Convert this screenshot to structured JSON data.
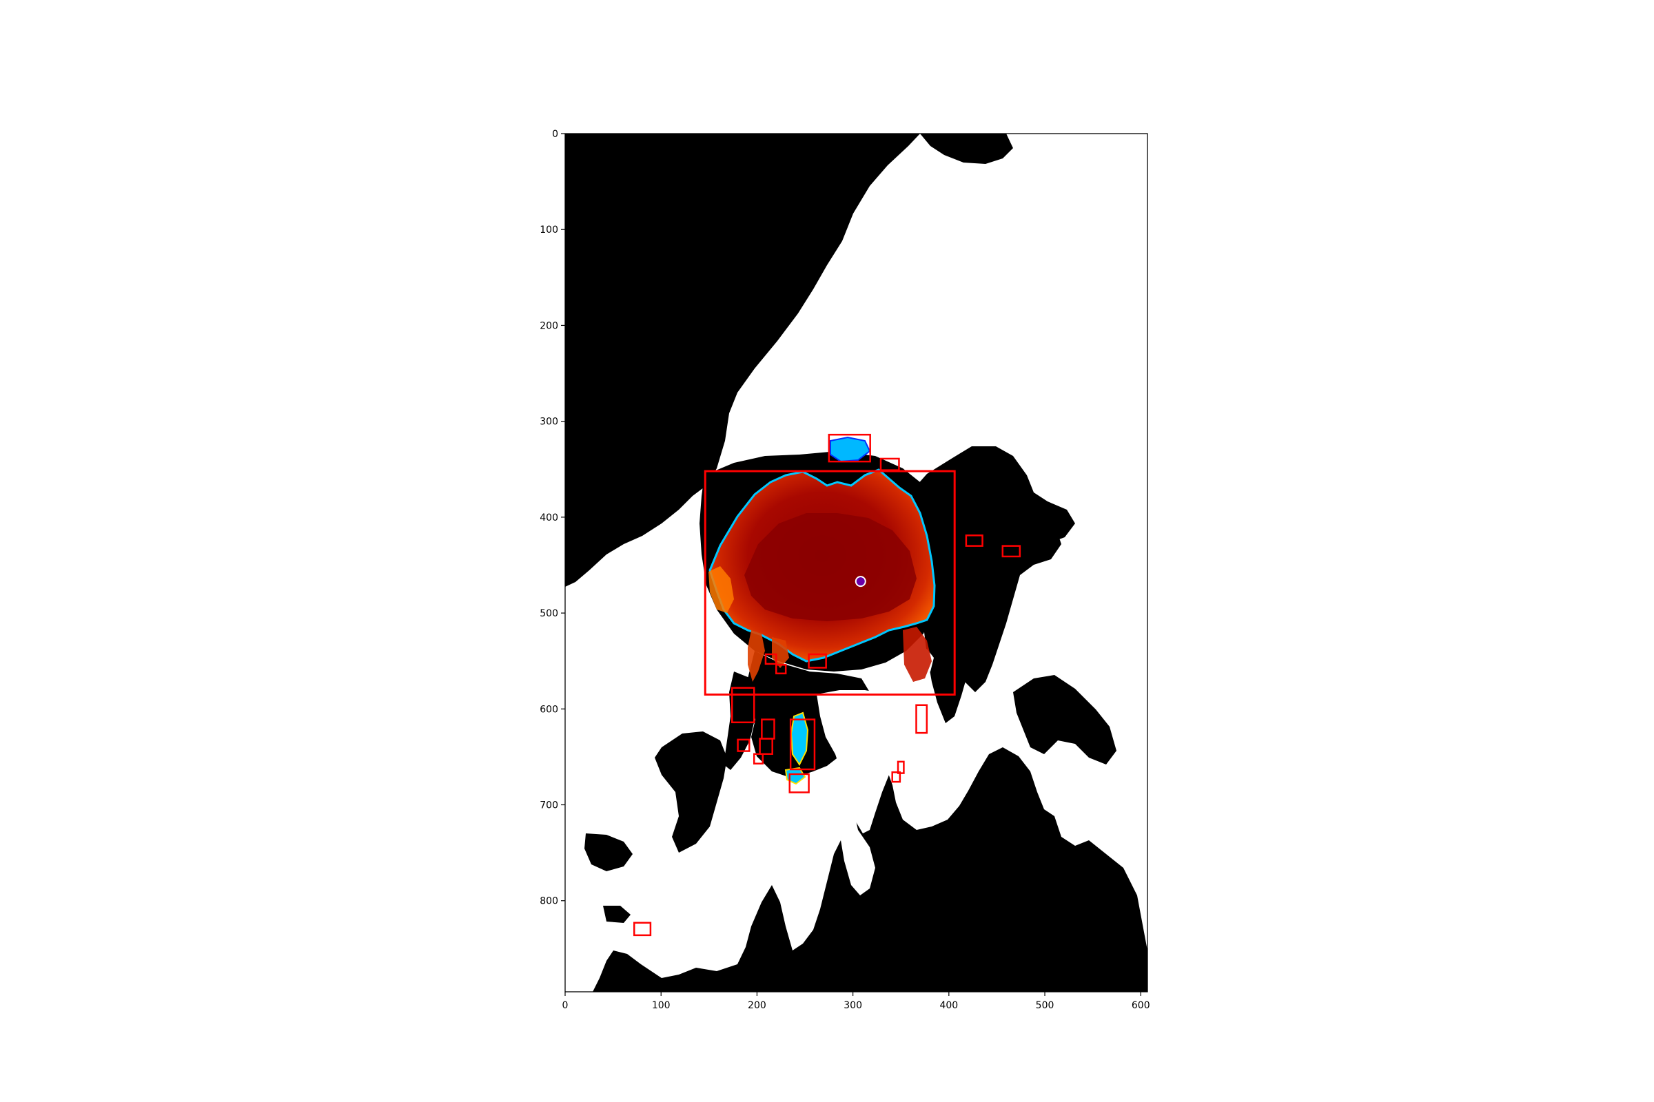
{
  "figure": {
    "type": "image-map-plot",
    "background": "#ffffff",
    "colors": {
      "ocean": "#000000",
      "land": "#ffffff",
      "ice_core": "#9b0000",
      "ice_mid": "#d42a00",
      "ice_edge_warm": "#ff8c00",
      "ice_edge_yellow": "#ffe000",
      "ice_edge_cyan": "#00d0ff",
      "ice_edge_blue": "#0030ff",
      "box": "#ff0000",
      "marker_fill": "#6a00a8",
      "marker_stroke": "#ffffff"
    }
  },
  "chart_data": {
    "type": "heatmap",
    "title": "",
    "xlabel": "",
    "ylabel": "",
    "xlim": [
      0,
      607
    ],
    "ylim": [
      895,
      0
    ],
    "x_ticks": [
      0,
      100,
      200,
      300,
      400,
      500,
      600
    ],
    "y_ticks": [
      0,
      100,
      200,
      300,
      400,
      500,
      600,
      700,
      800
    ],
    "grid": false,
    "marker": {
      "x": 308,
      "y": 467
    },
    "bounding_boxes": [
      {
        "x0": 146,
        "y0": 352,
        "x1": 406,
        "y1": 585
      },
      {
        "x0": 275,
        "y0": 314,
        "x1": 318,
        "y1": 342
      },
      {
        "x0": 329,
        "y0": 339,
        "x1": 348,
        "y1": 351
      },
      {
        "x0": 418,
        "y0": 419,
        "x1": 435,
        "y1": 430
      },
      {
        "x0": 456,
        "y0": 430,
        "x1": 474,
        "y1": 441
      },
      {
        "x0": 174,
        "y0": 578,
        "x1": 197,
        "y1": 614
      },
      {
        "x0": 235,
        "y0": 611,
        "x1": 260,
        "y1": 663
      },
      {
        "x0": 254,
        "y0": 543,
        "x1": 272,
        "y1": 557
      },
      {
        "x0": 209,
        "y0": 543,
        "x1": 220,
        "y1": 553
      },
      {
        "x0": 220,
        "y0": 554,
        "x1": 230,
        "y1": 563
      },
      {
        "x0": 366,
        "y0": 596,
        "x1": 377,
        "y1": 625
      },
      {
        "x0": 205,
        "y0": 611,
        "x1": 218,
        "y1": 631
      },
      {
        "x0": 180,
        "y0": 632,
        "x1": 192,
        "y1": 644
      },
      {
        "x0": 203,
        "y0": 631,
        "x1": 216,
        "y1": 647
      },
      {
        "x0": 197,
        "y0": 647,
        "x1": 206,
        "y1": 657
      },
      {
        "x0": 234,
        "y0": 668,
        "x1": 254,
        "y1": 687
      },
      {
        "x0": 72,
        "y0": 823,
        "x1": 89,
        "y1": 836
      },
      {
        "x0": 341,
        "y0": 666,
        "x1": 349,
        "y1": 676
      },
      {
        "x0": 347,
        "y0": 655,
        "x1": 353,
        "y1": 667
      }
    ]
  }
}
